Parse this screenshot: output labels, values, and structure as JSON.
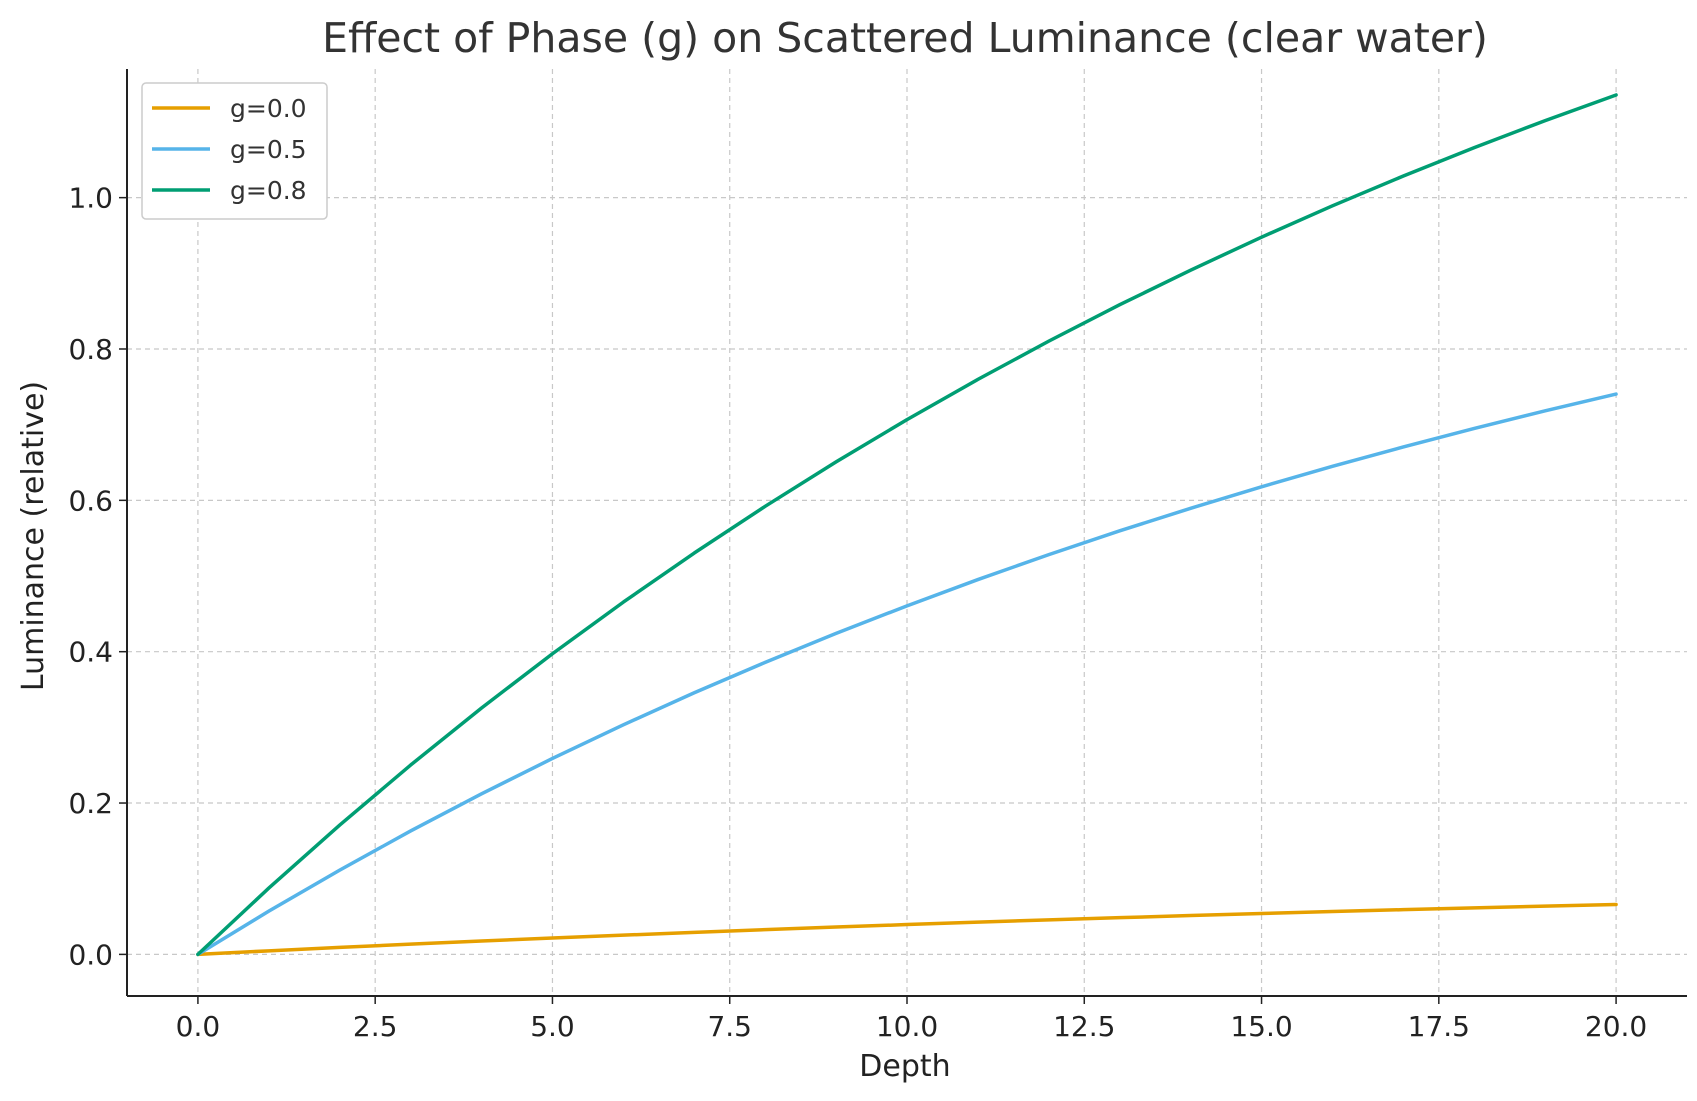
{
  "chart_data": {
    "type": "line",
    "title": "Effect of Phase (g) on Scattered Luminance (clear water)",
    "xlabel": "Depth",
    "ylabel": "Luminance (relative)",
    "xlim": [
      -1.0,
      21.0
    ],
    "ylim": [
      -0.055,
      1.17
    ],
    "xticks": [
      0.0,
      2.5,
      5.0,
      7.5,
      10.0,
      12.5,
      15.0,
      17.5,
      20.0
    ],
    "xtick_labels": [
      "0.0",
      "2.5",
      "5.0",
      "7.5",
      "10.0",
      "12.5",
      "15.0",
      "17.5",
      "20.0"
    ],
    "yticks": [
      0.0,
      0.2,
      0.4,
      0.6,
      0.8,
      1.0
    ],
    "ytick_labels": [
      "0.0",
      "0.2",
      "0.4",
      "0.6",
      "0.8",
      "1.0"
    ],
    "grid": true,
    "legend_position": "top-left",
    "x": [
      0,
      1,
      2,
      3,
      4,
      5,
      6,
      7,
      8,
      9,
      10,
      11,
      12,
      13,
      14,
      15,
      16,
      17,
      18,
      19,
      20
    ],
    "series": [
      {
        "name": "g=0.0",
        "color": "#E69F00",
        "values": [
          0.0,
          0.0047,
          0.0092,
          0.0135,
          0.0176,
          0.0216,
          0.0254,
          0.0291,
          0.0327,
          0.0361,
          0.0394,
          0.0426,
          0.0456,
          0.0485,
          0.0513,
          0.054,
          0.0566,
          0.0591,
          0.0615,
          0.0638,
          0.066
        ]
      },
      {
        "name": "g=0.5",
        "color": "#56B4E9",
        "values": [
          0.0,
          0.0571,
          0.1114,
          0.1631,
          0.2122,
          0.2589,
          0.3034,
          0.3457,
          0.3859,
          0.4242,
          0.4606,
          0.4953,
          0.5283,
          0.5597,
          0.5895,
          0.6179,
          0.6449,
          0.6706,
          0.695,
          0.7183,
          0.7404
        ]
      },
      {
        "name": "g=0.8",
        "color": "#009E73",
        "values": [
          0.0,
          0.0876,
          0.1709,
          0.2502,
          0.3256,
          0.3973,
          0.4655,
          0.5304,
          0.5921,
          0.6508,
          0.7067,
          0.7598,
          0.8104,
          0.8585,
          0.9042,
          0.9478,
          0.9892,
          1.0286,
          1.0661,
          1.1018,
          1.1357
        ]
      }
    ]
  }
}
